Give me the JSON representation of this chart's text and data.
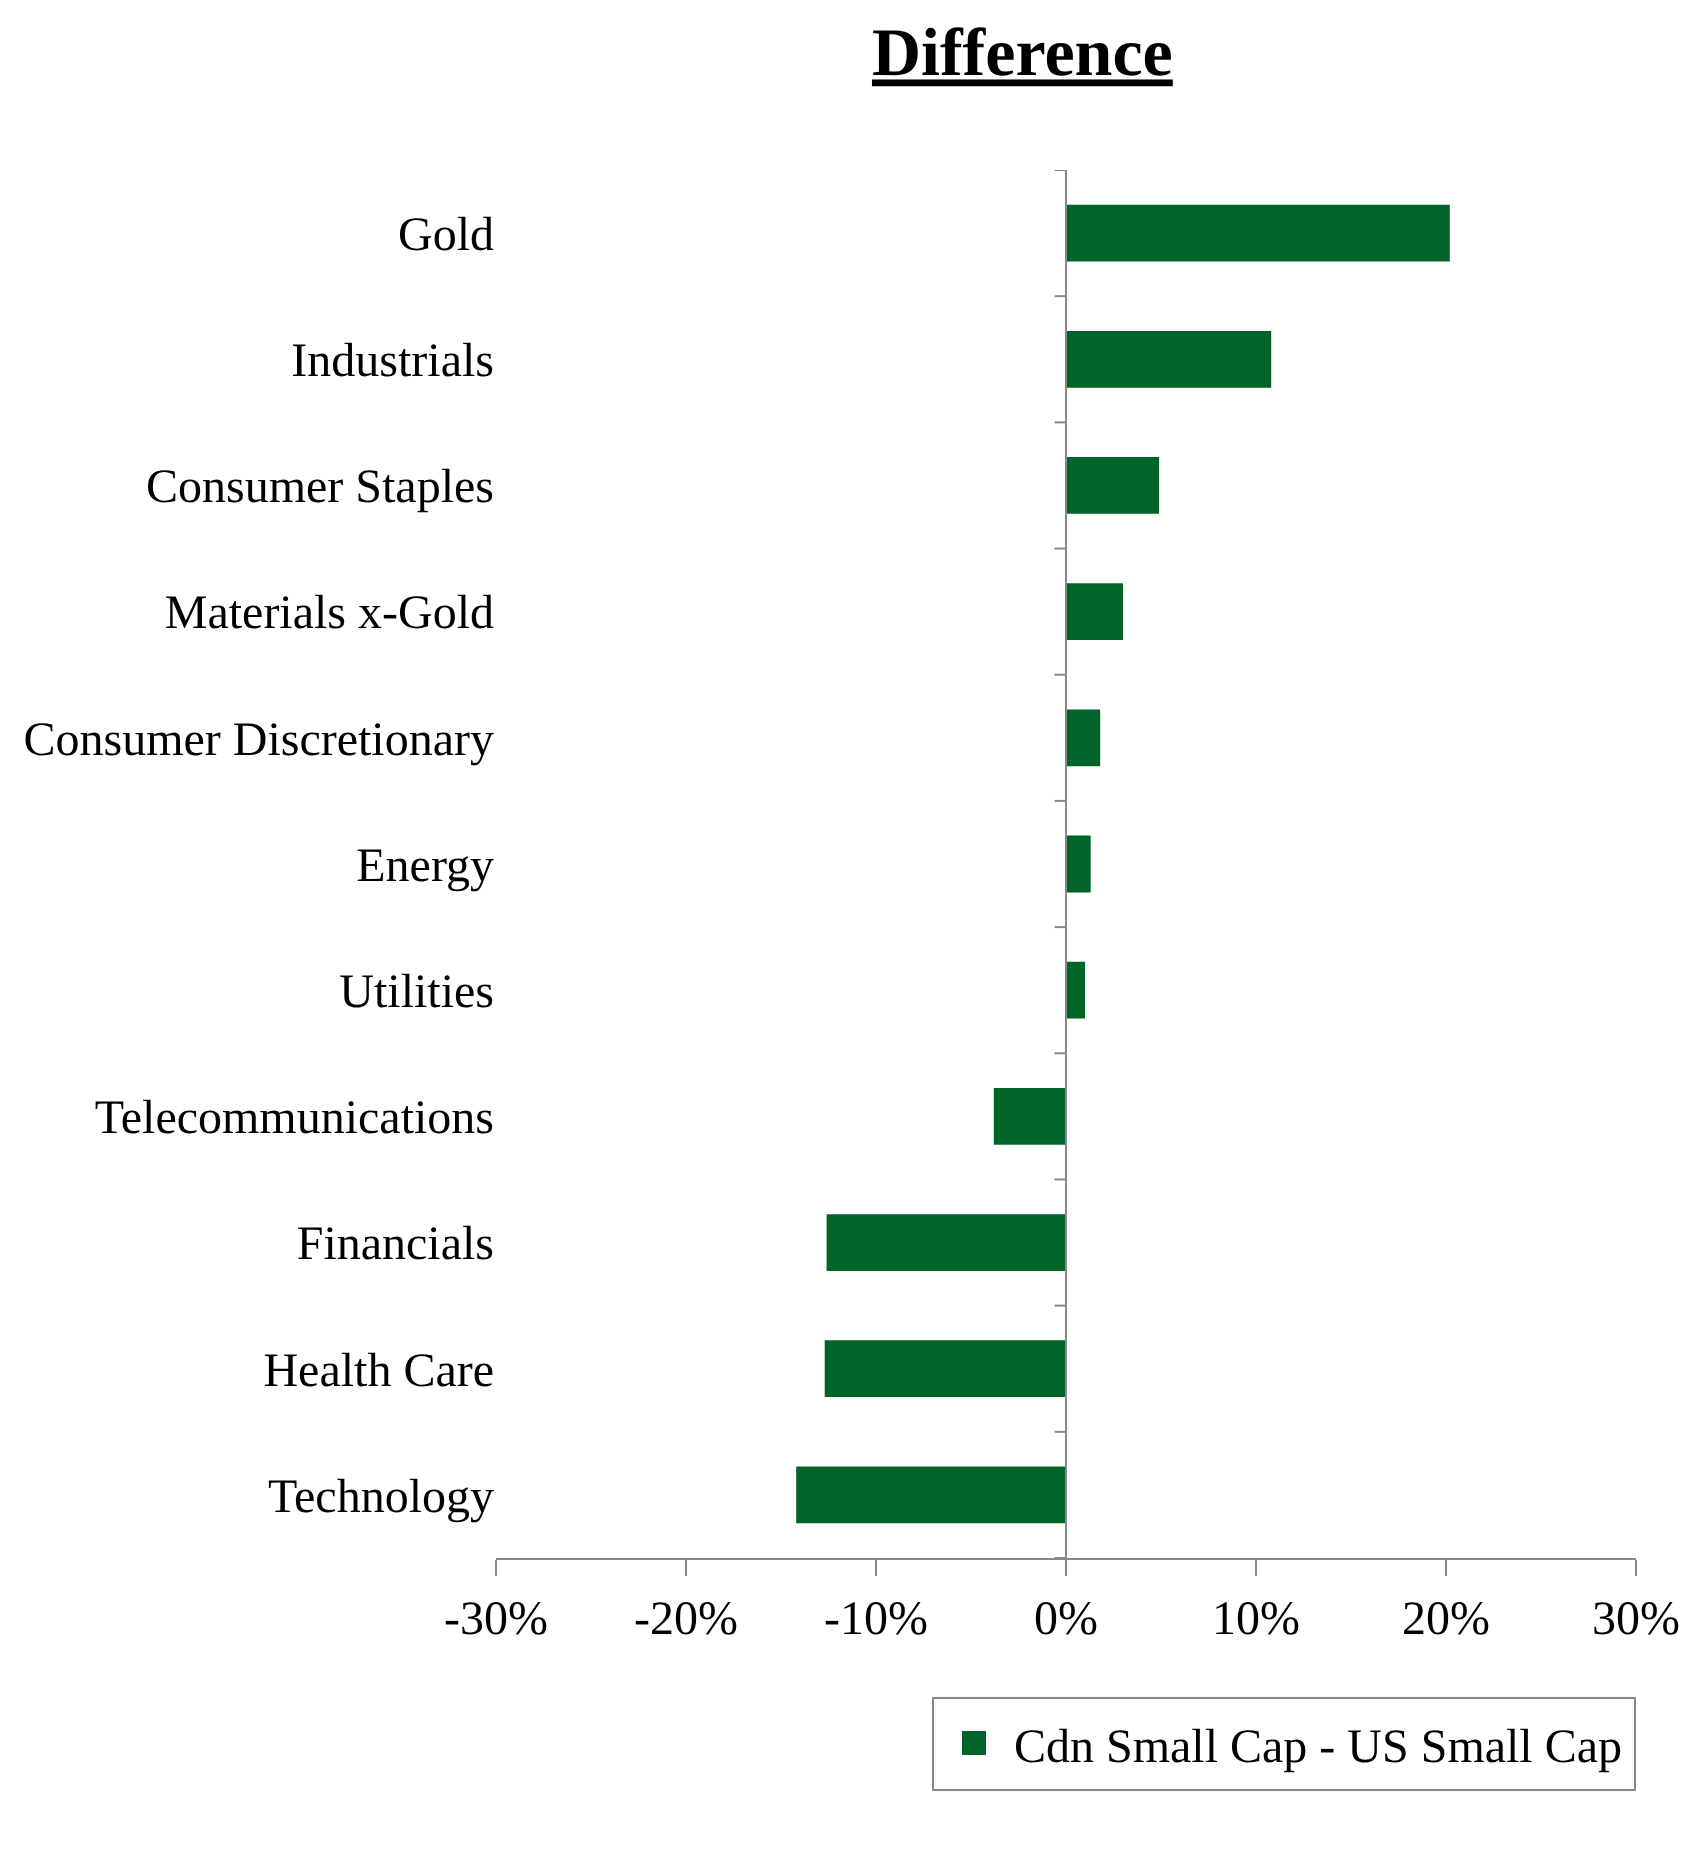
{
  "chart_data": {
    "type": "bar",
    "orientation": "horizontal",
    "title": "Difference",
    "categories": [
      "Gold",
      "Industrials",
      "Consumer Staples",
      "Materials x-Gold",
      "Consumer Discretionary",
      "Energy",
      "Utilities",
      "Telecommunications",
      "Financials",
      "Health Care",
      "Technology"
    ],
    "series": [
      {
        "name": "Cdn Small Cap - US Small Cap",
        "color": "#006428",
        "values": [
          20.2,
          10.8,
          4.9,
          3.0,
          1.8,
          1.3,
          1.0,
          -3.8,
          -12.6,
          -12.7,
          -14.2
        ]
      }
    ],
    "xlim": [
      -30,
      30
    ],
    "xticks": [
      {
        "value": -30,
        "label": "-30%"
      },
      {
        "value": -20,
        "label": "-20%"
      },
      {
        "value": -10,
        "label": "-10%"
      },
      {
        "value": 0,
        "label": "0%"
      },
      {
        "value": 10,
        "label": "10%"
      },
      {
        "value": 20,
        "label": "20%"
      },
      {
        "value": 30,
        "label": "30%"
      }
    ],
    "legend": "bottom"
  }
}
